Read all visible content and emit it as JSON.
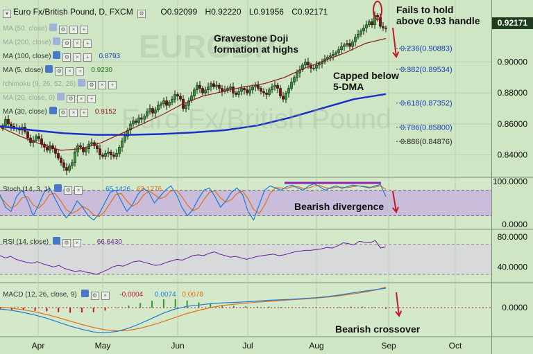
{
  "header": {
    "symbol": "Euro Fx/British Pound, D, FXCM",
    "open": "O0.92099",
    "high": "H0.92220",
    "low": "L0.91956",
    "close": "C0.92171"
  },
  "last_price": "0.92171",
  "indicators": [
    {
      "label": "MA (50, close)",
      "value": "",
      "dim": true
    },
    {
      "label": "MA (200, close)",
      "value": "",
      "dim": true
    },
    {
      "label": "MA (100, close)",
      "value": "0.8793",
      "color": "#1a3fb5"
    },
    {
      "label": "MA (5, close)",
      "value": "0.9230",
      "color": "#1a7a1a"
    },
    {
      "label": "Ichimoku (9, 26, 52, 26)",
      "value": "",
      "dim": true
    },
    {
      "label": "MA (20, close, 0)",
      "value": "",
      "dim": true
    },
    {
      "label": "MA (30, close)",
      "value": "0.9152",
      "color": "#8b1a1a"
    }
  ],
  "watermark": {
    "line1": "EURGBP",
    "line2": "Euro Fx/British Pound"
  },
  "annotations": {
    "fails": [
      "Fails to hold",
      "above 0.93 handle"
    ],
    "doji": [
      "Gravestone Doji",
      "formation at highs"
    ],
    "capped": [
      "Capped below",
      "5-DMA"
    ],
    "divergence": "Bearish divergence",
    "crossover": "Bearish crossover"
  },
  "fib_levels": [
    {
      "label": "0.236(0.90883)",
      "price": 0.90883,
      "color": "#1a3fb5"
    },
    {
      "label": "0.382(0.89534)",
      "price": 0.89534,
      "color": "#1a3fb5"
    },
    {
      "label": "0.618(0.87352)",
      "price": 0.87352,
      "color": "#1a3fb5"
    },
    {
      "label": "0.786(0.85800)",
      "price": 0.858,
      "color": "#1a3fb5"
    },
    {
      "label": "0.886(0.84876)",
      "price": 0.84876,
      "color": "#222222"
    }
  ],
  "stoch": {
    "label": "Stoch (14, 3, 1)",
    "k": "65.1426",
    "d": "63.1276"
  },
  "rsi": {
    "label": "RSI (14, close)",
    "value": "66.6430"
  },
  "macd": {
    "label": "MACD (12, 26, close, 9)",
    "hist": "-0.0004",
    "macd": "0.0074",
    "signal": "0.0078"
  },
  "chart_data": {
    "type": "line",
    "title": "Euro Fx/British Pound, D, FXCM",
    "x_labels": [
      "Apr",
      "May",
      "Jun",
      "Jul",
      "Aug",
      "Sep",
      "Oct"
    ],
    "price_axis": {
      "ticks": [
        "0.90000",
        "0.88000",
        "0.86000",
        "0.84000"
      ],
      "range": [
        0.826,
        0.94
      ]
    },
    "stoch_axis": {
      "ticks": [
        "100.0000",
        "0.0000"
      ],
      "range": [
        -10,
        110
      ]
    },
    "rsi_axis": {
      "ticks": [
        "80.0000",
        "40.0000"
      ],
      "range": [
        20,
        90
      ]
    },
    "macd_axis": {
      "ticks": [
        "0.0000"
      ],
      "range": [
        -0.011,
        0.0095
      ]
    },
    "series": [
      {
        "name": "Close",
        "values": [
          0.859,
          0.863,
          0.86,
          0.8585,
          0.857,
          0.8575,
          0.856,
          0.858,
          0.855,
          0.851,
          0.848,
          0.8495,
          0.852,
          0.8505,
          0.847,
          0.845,
          0.843,
          0.846,
          0.844,
          0.841,
          0.838,
          0.835,
          0.832,
          0.83,
          0.833,
          0.835,
          0.842,
          0.846,
          0.845,
          0.842,
          0.844,
          0.847,
          0.848,
          0.846,
          0.844,
          0.84,
          0.839,
          0.841,
          0.842,
          0.84,
          0.839,
          0.841,
          0.845,
          0.849,
          0.852,
          0.856,
          0.86,
          0.862,
          0.861,
          0.864,
          0.863,
          0.865,
          0.868,
          0.87,
          0.867,
          0.869,
          0.872,
          0.873,
          0.875,
          0.872,
          0.874,
          0.876,
          0.879,
          0.878,
          0.876,
          0.87,
          0.872,
          0.875,
          0.878,
          0.882,
          0.885,
          0.883,
          0.88,
          0.882,
          0.884,
          0.886,
          0.884,
          0.885,
          0.883,
          0.881,
          0.882,
          0.883,
          0.884,
          0.88,
          0.879,
          0.881,
          0.883,
          0.882,
          0.88,
          0.882,
          0.884,
          0.885,
          0.883,
          0.881,
          0.88,
          0.879,
          0.882,
          0.884,
          0.885,
          0.883,
          0.878,
          0.876,
          0.88,
          0.883,
          0.887,
          0.89,
          0.893,
          0.895,
          0.898,
          0.9,
          0.898,
          0.896,
          0.896,
          0.898,
          0.899,
          0.9,
          0.902,
          0.903,
          0.904,
          0.905,
          0.906,
          0.908,
          0.91,
          0.911,
          0.912,
          0.91,
          0.913,
          0.916,
          0.918,
          0.92,
          0.922,
          0.924,
          0.926,
          0.924,
          0.93,
          0.929,
          0.923,
          0.922,
          0.9217
        ]
      },
      {
        "name": "MA (100, close)",
        "values": [
          0.8585,
          0.856,
          0.854,
          0.853,
          0.853,
          0.8535,
          0.8545,
          0.856,
          0.859,
          0.864,
          0.87,
          0.876,
          0.8793
        ]
      },
      {
        "name": "MA (30, close)",
        "values": [
          0.858,
          0.852,
          0.847,
          0.843,
          0.844,
          0.848,
          0.854,
          0.86,
          0.866,
          0.873,
          0.878,
          0.881,
          0.884,
          0.886,
          0.89,
          0.896,
          0.901,
          0.906,
          0.912,
          0.9152
        ]
      },
      {
        "name": "Stoch %K",
        "values": [
          70,
          40,
          30,
          65,
          80,
          55,
          20,
          45,
          75,
          85,
          60,
          35,
          15,
          30,
          55,
          40,
          20,
          10,
          25,
          50,
          75,
          80,
          55,
          30,
          45,
          70,
          85,
          75,
          50,
          65,
          80,
          90,
          70,
          40,
          20,
          35,
          60,
          80,
          85,
          65,
          40,
          55,
          75,
          85,
          70,
          30,
          10,
          45,
          80,
          90,
          85,
          80,
          88,
          92,
          85,
          80,
          90,
          95,
          88,
          80,
          86,
          90,
          84,
          88,
          92,
          90,
          88,
          85,
          90,
          93,
          65
        ]
      },
      {
        "name": "Stoch %D",
        "values": [
          65,
          50,
          38,
          45,
          62,
          65,
          45,
          38,
          50,
          70,
          72,
          55,
          35,
          25,
          32,
          42,
          35,
          22,
          18,
          30,
          50,
          70,
          72,
          55,
          42,
          50,
          68,
          78,
          70,
          60,
          65,
          78,
          80,
          65,
          45,
          32,
          38,
          58,
          75,
          78,
          62,
          52,
          58,
          72,
          78,
          60,
          35,
          25,
          45,
          72,
          86,
          85,
          84,
          88,
          88,
          84,
          85,
          90,
          91,
          86,
          84,
          87,
          87,
          86,
          88,
          90,
          89,
          87,
          87,
          90,
          82
        ]
      },
      {
        "name": "RSI",
        "values": [
          55,
          52,
          54,
          50,
          48,
          46,
          45,
          47,
          44,
          42,
          40,
          42,
          38,
          36,
          34,
          35,
          33,
          32,
          30,
          33,
          36,
          40,
          42,
          41,
          44,
          47,
          48,
          46,
          44,
          42,
          43,
          46,
          48,
          50,
          49,
          52,
          55,
          56,
          55,
          58,
          60,
          57,
          55,
          53,
          54,
          52,
          50,
          52,
          54,
          55,
          56,
          57,
          55,
          56,
          58,
          60,
          61,
          62,
          62,
          63,
          64,
          66,
          65,
          68,
          72,
          71,
          69,
          74,
          73,
          72,
          75,
          65,
          66.6
        ]
      },
      {
        "name": "MACD",
        "values": [
          -0.0005,
          -0.001,
          -0.0018,
          -0.0028,
          -0.004,
          -0.0055,
          -0.007,
          -0.0082,
          -0.0092,
          -0.0095,
          -0.009,
          -0.0078,
          -0.006,
          -0.004,
          -0.002,
          -0.0005,
          0.0005,
          0.001,
          0.0015,
          0.0018,
          0.002,
          0.0022,
          0.0025,
          0.0028,
          0.003,
          0.0032,
          0.0035,
          0.0038,
          0.0042,
          0.0048,
          0.0055,
          0.0062,
          0.0068,
          0.0074
        ]
      },
      {
        "name": "Signal",
        "values": [
          0.0002,
          -0.0002,
          -0.0008,
          -0.0016,
          -0.0026,
          -0.0038,
          -0.0051,
          -0.0064,
          -0.0075,
          -0.0084,
          -0.0088,
          -0.0086,
          -0.0078,
          -0.0066,
          -0.0052,
          -0.0037,
          -0.0022,
          -0.001,
          0.0,
          0.0008,
          0.0013,
          0.0017,
          0.0021,
          0.0024,
          0.0027,
          0.003,
          0.0033,
          0.0036,
          0.004,
          0.0045,
          0.0051,
          0.0058,
          0.0066,
          0.0078
        ]
      }
    ]
  }
}
